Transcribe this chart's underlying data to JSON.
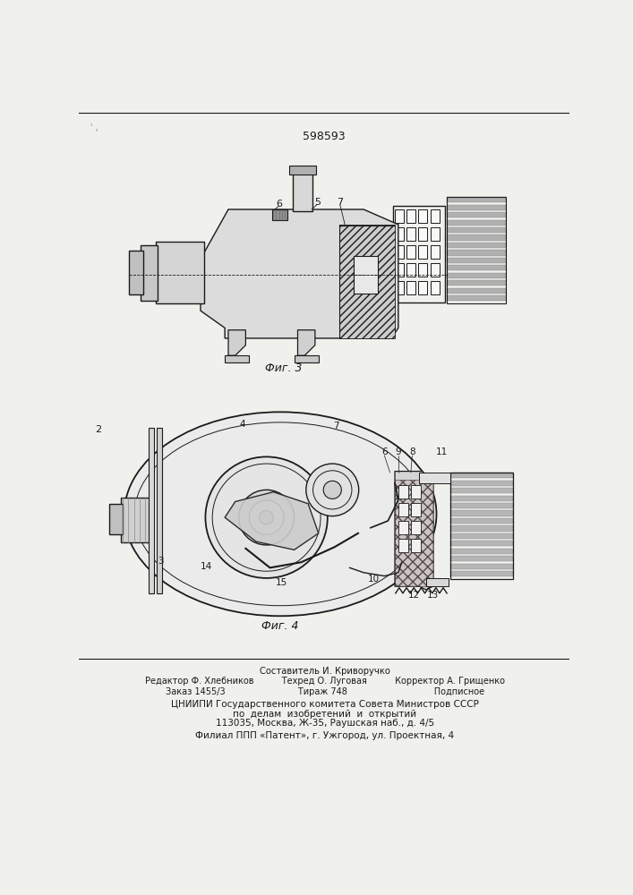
{
  "patent_number": "598593",
  "fig3_label": "Фиг. 3",
  "fig4_label": "Фиг. 4",
  "background_color": "#f0f0ec",
  "line_color": "#1a1a1a",
  "footer_lines": [
    "Составитель И. Криворучко",
    "Редактор Ф. Хлебников          Техред О. Луговая          Корректор А. Грищенко",
    "Заказ 1455/3                          Тираж 748                               Подписное",
    "ЦНИИПИ Государственного комитета Совета Министров СССР",
    "по  делам  изобретений  и  открытий",
    "113035, Москва, Ж-35, Раушская наб., д. 4/5",
    "",
    "Филиал ППП «Патент», г. Ужгород, ул. Проектная, 4"
  ]
}
